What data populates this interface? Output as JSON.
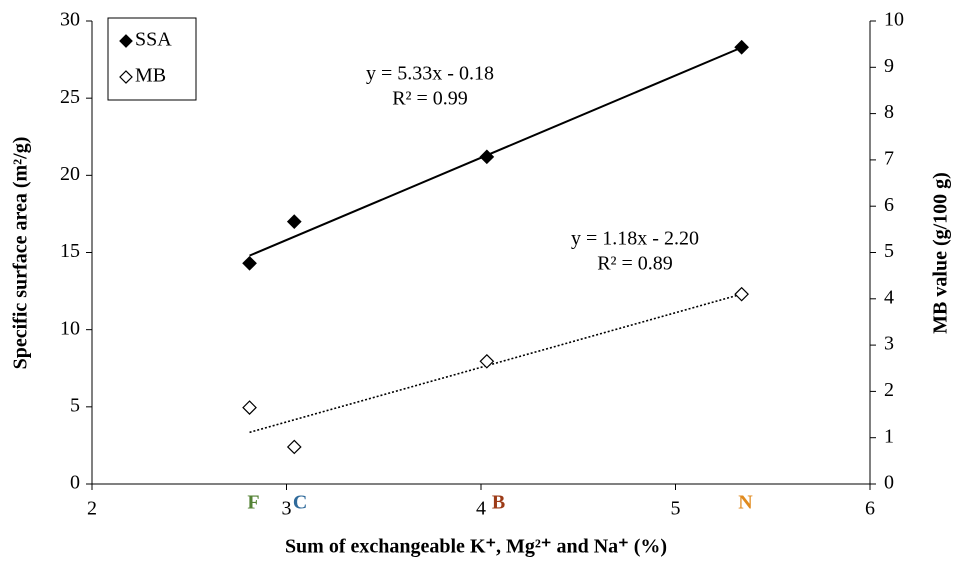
{
  "chart_data": {
    "type": "scatter",
    "xlabel": "Sum of exchangeable  K⁺, Mg²⁺ and Na⁺ (%)",
    "ylabel": "Specific surface area (m²/g)",
    "y2label": "MB value (g/100 g)",
    "xlim": [
      2,
      6
    ],
    "xticks": [
      2,
      3,
      4,
      5,
      6
    ],
    "ylim": [
      0,
      30
    ],
    "yticks": [
      0,
      5,
      10,
      15,
      20,
      25,
      30
    ],
    "y2lim": [
      0,
      10
    ],
    "y2ticks": [
      0,
      1,
      2,
      3,
      4,
      5,
      6,
      7,
      8,
      9,
      10
    ],
    "legend": "upper left",
    "series": [
      {
        "name": "SSA",
        "color": "#000000",
        "marker": "filled",
        "x": [
          2.81,
          3.04,
          4.03,
          5.34
        ],
        "values": [
          14.3,
          17.0,
          21.2,
          28.3
        ],
        "trendline": {
          "slope": 5.33,
          "intercept": -0.18,
          "style": "solid",
          "equation": "y = 5.33x - 0.18",
          "r2": "R² = 0.99"
        }
      },
      {
        "name": "MB",
        "color": "#000000",
        "marker": "open",
        "axis": "y2",
        "x": [
          2.81,
          3.04,
          4.03,
          5.34
        ],
        "values": [
          1.65,
          0.8,
          2.65,
          4.1
        ],
        "trendline": {
          "slope": 1.18,
          "intercept": -2.2,
          "style": "dotted",
          "equation": "y = 1.18x - 2.20",
          "r2": "R² = 0.89"
        }
      }
    ],
    "annotations": [
      {
        "text": "F",
        "x": 2.83,
        "color": "#548235"
      },
      {
        "text": "C",
        "x": 3.07,
        "color": "#2f6a9a"
      },
      {
        "text": "B",
        "x": 4.09,
        "color": "#9c3b17"
      },
      {
        "text": "N",
        "x": 5.36,
        "color": "#e08a1e"
      }
    ]
  }
}
